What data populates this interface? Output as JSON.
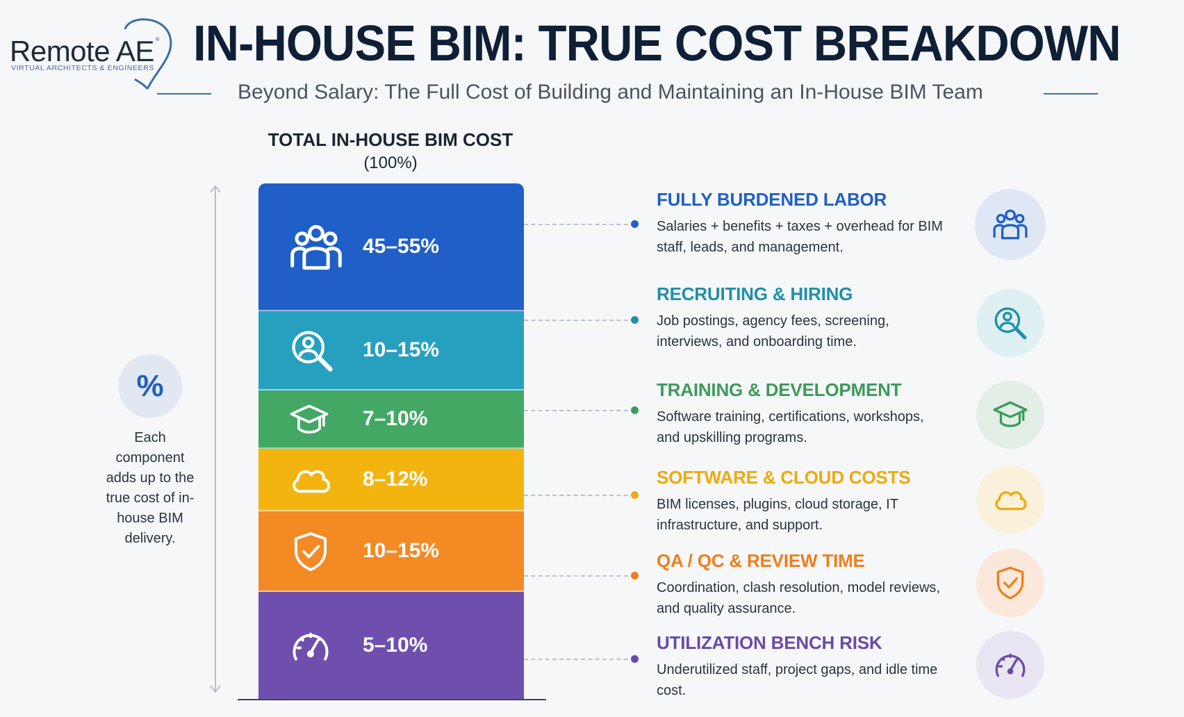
{
  "logo": {
    "name": "Remote AE",
    "tagline": "VIRTUAL ARCHITECTS & ENGINEERS",
    "reg": "®"
  },
  "header": {
    "title": "IN-HOUSE BIM: TRUE COST BREAKDOWN",
    "subtitle": "Beyond Salary: The Full Cost of Building and Maintaining an In-House BIM Team"
  },
  "stack_heading": {
    "line1": "TOTAL IN-HOUSE BIM COST",
    "line2": "(100%)"
  },
  "left_note": {
    "badge": "%",
    "text": "Each component adds up to the true cost of in-house BIM delivery."
  },
  "chart_data": {
    "type": "bar",
    "stacked": true,
    "title": "TOTAL IN-HOUSE BIM COST",
    "total_label": "(100%)",
    "categories": [
      "FULLY BURDENED LABOR",
      "RECRUITING & HIRING",
      "TRAINING & DEVELOPMENT",
      "SOFTWARE & CLOUD COSTS",
      "QA / QC & REVIEW TIME",
      "UTILIZATION BENCH RISK"
    ],
    "series": [
      {
        "category": "FULLY BURDENED LABOR",
        "label": "45–55%",
        "low": 45,
        "high": 55,
        "color": "#1f5fc7",
        "icon": "group-icon",
        "description": "Salaries + benefits + taxes + overhead for BIM staff, leads, and management."
      },
      {
        "category": "RECRUITING & HIRING",
        "label": "10–15%",
        "low": 10,
        "high": 15,
        "color": "#27a0c0",
        "icon": "user-search-icon",
        "description": "Job postings, agency fees, screening, interviews, and onboarding time."
      },
      {
        "category": "TRAINING & DEVELOPMENT",
        "label": "7–10%",
        "low": 7,
        "high": 10,
        "color": "#42a863",
        "icon": "graduation-cap-icon",
        "description": "Software training, certifications, workshops, and upskilling programs."
      },
      {
        "category": "SOFTWARE & CLOUD COSTS",
        "label": "8–12%",
        "low": 8,
        "high": 12,
        "color": "#f3b40f",
        "icon": "cloud-icon",
        "description": "BIM licenses, plugins, cloud storage, IT infrastructure, and support."
      },
      {
        "category": "QA / QC & REVIEW TIME",
        "label": "10–15%",
        "low": 10,
        "high": 15,
        "color": "#f38a24",
        "icon": "shield-check-icon",
        "description": "Coordination, clash resolution, model reviews, and quality assurance."
      },
      {
        "category": "UTILIZATION BENCH RISK",
        "label": "5–10%",
        "low": 5,
        "high": 10,
        "color": "#6f4fae",
        "icon": "gauge-icon",
        "description": "Underutilized staff, project gaps, and idle time cost."
      }
    ],
    "title_colors": [
      "#1f5fc7",
      "#1f8fab",
      "#3d9b5a",
      "#f0a90c",
      "#ee7f1c",
      "#6a4aa8"
    ],
    "badge_colors": [
      "#dfe7f5",
      "#dff0f2",
      "#e3efe6",
      "#fbf0d9",
      "#fbe8da",
      "#e9e5f3"
    ]
  }
}
